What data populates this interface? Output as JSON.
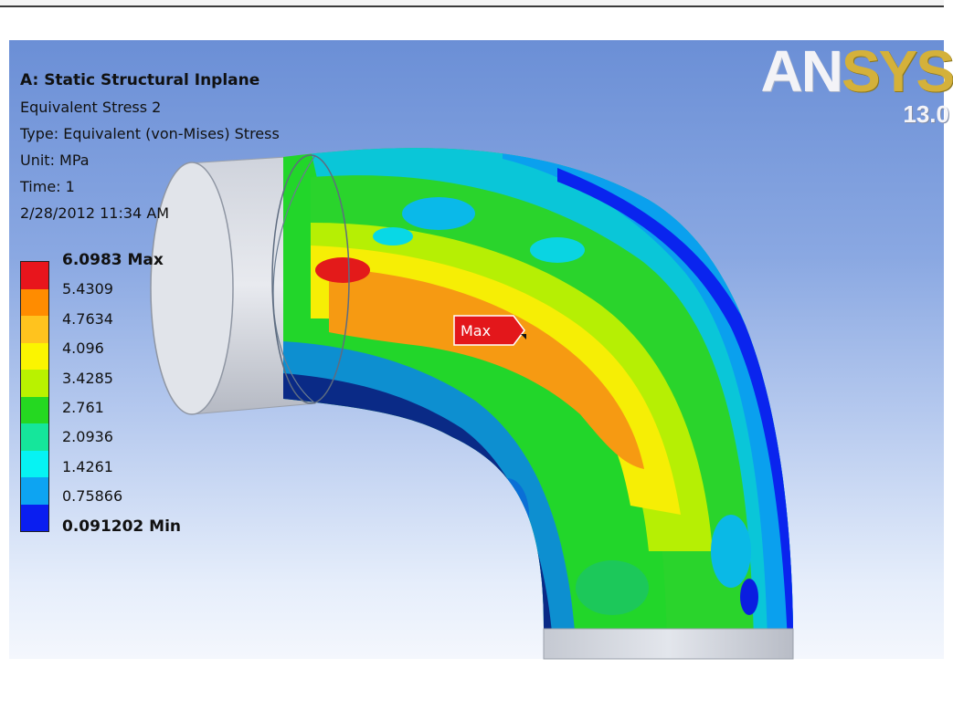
{
  "result_info": {
    "title": "A: Static Structural Inplane",
    "result_name": "Equivalent Stress 2",
    "type": "Type: Equivalent (von-Mises) Stress",
    "unit": "Unit: MPa",
    "time": "Time: 1",
    "timestamp": "2/28/2012 11:34 AM"
  },
  "logo": {
    "text_an": "AN",
    "text_sys": "SYS",
    "version": "13.0"
  },
  "legend": {
    "colors": [
      "#e8151c",
      "#ff8c00",
      "#ffc31e",
      "#fbf500",
      "#b9f200",
      "#25d821",
      "#15e69b",
      "#06f3f3",
      "#0da4f2",
      "#0a1ef0"
    ],
    "labels": [
      "6.0983 Max",
      "5.4309",
      "4.7634",
      "4.096",
      "3.4285",
      "2.761",
      "2.0936",
      "1.4261",
      "0.75866",
      "0.091202 Min"
    ]
  },
  "probe": {
    "label": "Max"
  }
}
